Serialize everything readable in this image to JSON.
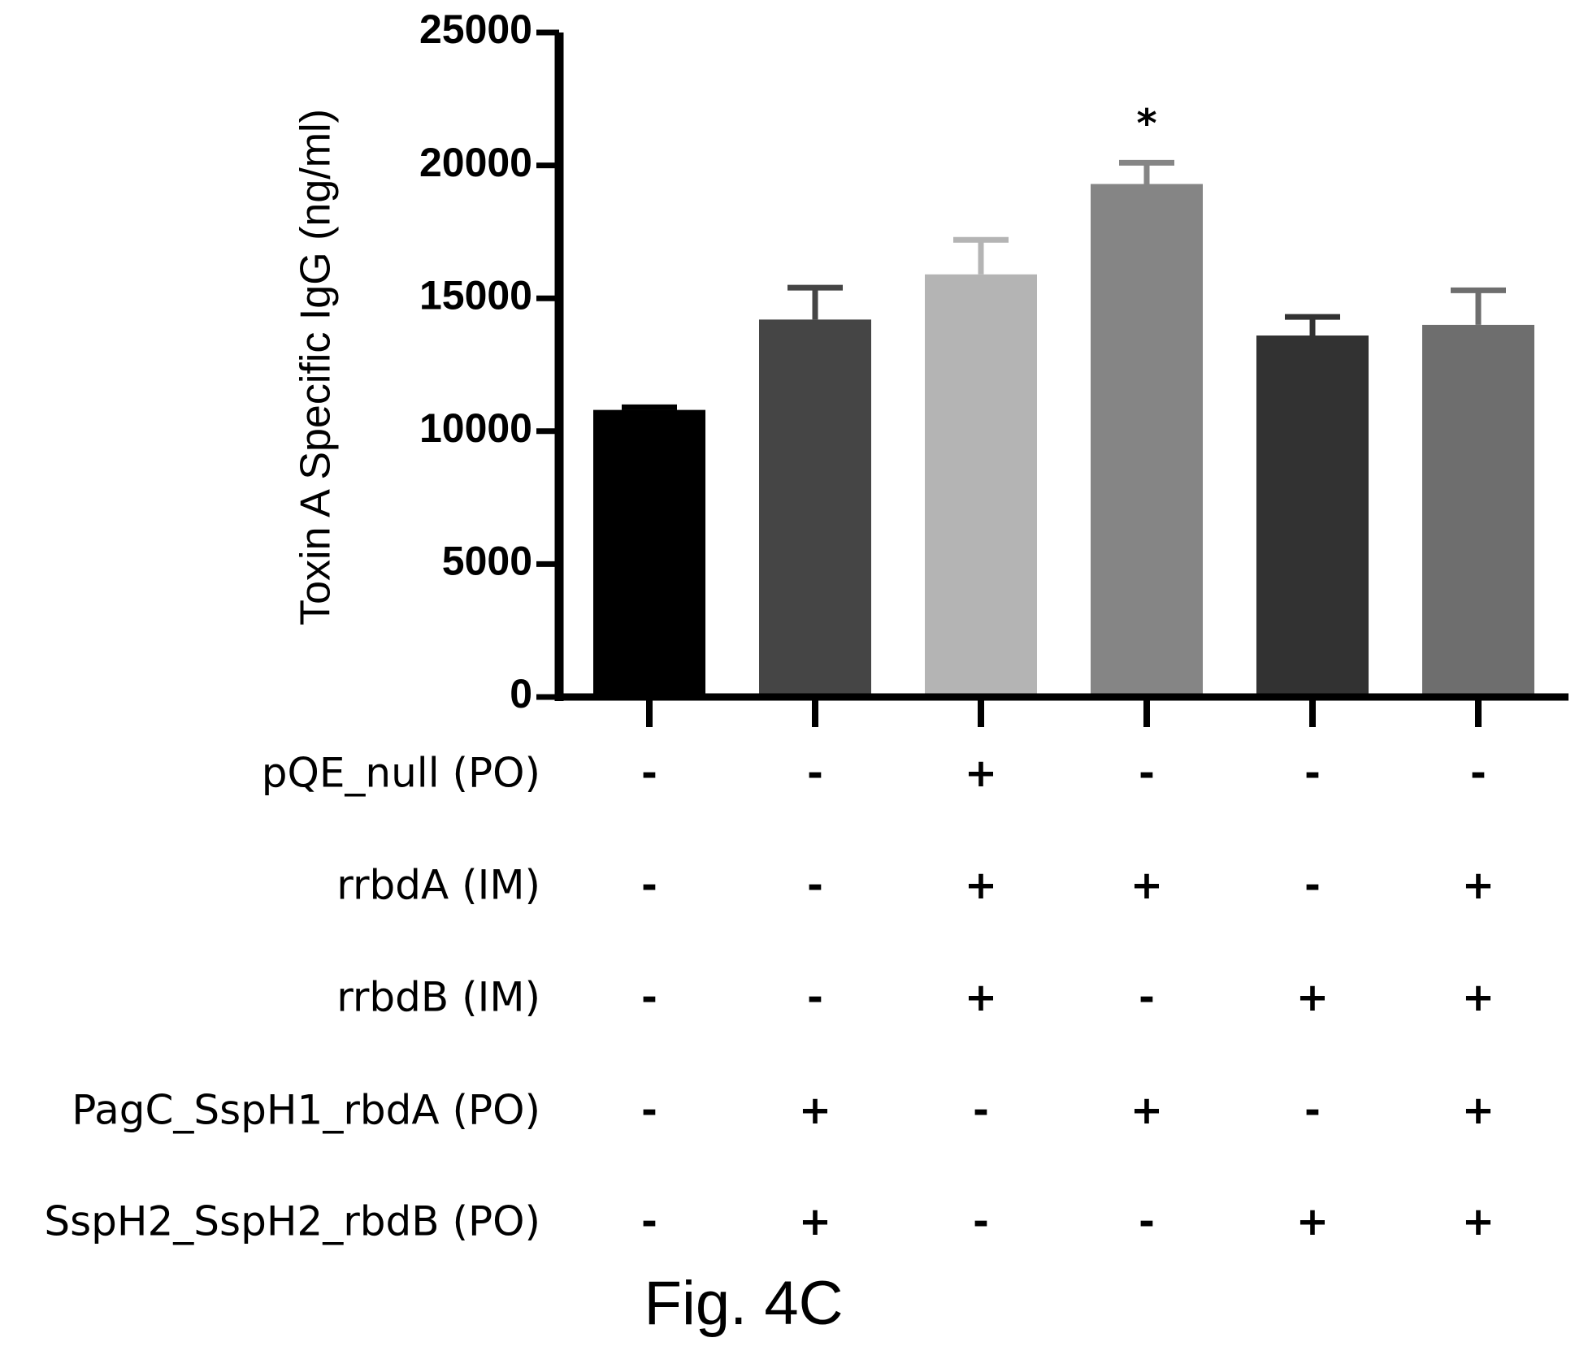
{
  "chart_data": {
    "type": "bar",
    "title": "",
    "xlabel": "",
    "ylabel": "Toxin A Specific IgG (ng/ml)",
    "ylim": [
      0,
      25000
    ],
    "yticks": [
      "0",
      "5000",
      "10000",
      "15000",
      "20000",
      "25000"
    ],
    "ytick_values": [
      0,
      5000,
      10000,
      15000,
      20000,
      25000
    ],
    "grid": false,
    "series": [
      {
        "name": "Toxin A Specific IgG",
        "values": [
          10800,
          14200,
          15900,
          19300,
          13600,
          14000
        ],
        "errors": [
          100,
          1200,
          1300,
          800,
          700,
          1300
        ],
        "colors": [
          "#000000",
          "#454545",
          "#b4b4b4",
          "#858585",
          "#323232",
          "#6e6e6e"
        ]
      }
    ],
    "annotations": [
      {
        "bar_index": 3,
        "text": "*"
      }
    ],
    "conditions": [
      {
        "label": "pQE_null (PO)",
        "marks": [
          "-",
          "-",
          "+",
          "-",
          "-",
          "-"
        ]
      },
      {
        "label": "rrbdA (IM)",
        "marks": [
          "-",
          "-",
          "+",
          "+",
          "-",
          "+"
        ]
      },
      {
        "label": "rrbdB (IM)",
        "marks": [
          "-",
          "-",
          "+",
          "-",
          "+",
          "+"
        ]
      },
      {
        "label": "PagC_SspH1_rbdA (PO)",
        "marks": [
          "-",
          "+",
          "-",
          "+",
          "-",
          "+"
        ]
      },
      {
        "label": "SspH2_SspH2_rbdB (PO)",
        "marks": [
          "-",
          "+",
          "-",
          "-",
          "+",
          "+"
        ]
      }
    ]
  },
  "caption": "Fig. 4C"
}
